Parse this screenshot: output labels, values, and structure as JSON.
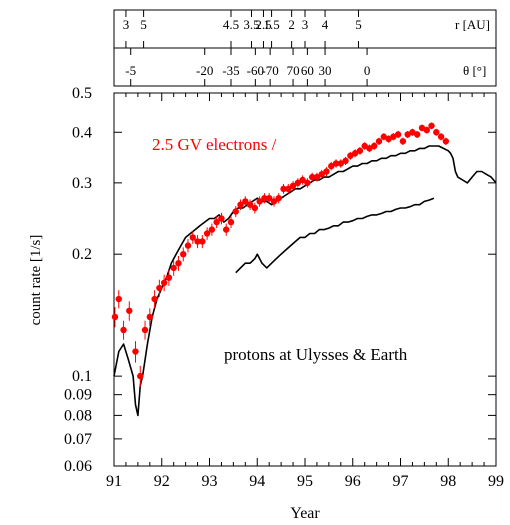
{
  "chart_data": {
    "type": "scatter",
    "title": "",
    "xlabel": "Year",
    "ylabel": "count rate [1/s]",
    "x_scale": "linear",
    "y_scale": "log",
    "xlim": [
      91,
      99
    ],
    "ylim": [
      0.06,
      0.5
    ],
    "x_ticks": [
      91,
      92,
      93,
      94,
      95,
      96,
      97,
      98,
      99
    ],
    "x_tick_labels": [
      "91",
      "92",
      "93",
      "94",
      "95",
      "96",
      "97",
      "98",
      "99"
    ],
    "y_ticks": [
      0.06,
      0.07,
      0.08,
      0.09,
      0.1,
      0.2,
      0.3,
      0.4,
      0.5
    ],
    "y_tick_labels": [
      "0.06",
      "0.07",
      "0.08",
      "0.09",
      "0.1",
      "0.2",
      "0.3",
      "0.4",
      "0.5"
    ],
    "grid": false,
    "legend": "none",
    "annotations": [
      {
        "text": "2.5 GV electrons /",
        "color": "#ff0000"
      },
      {
        "text": "protons at Ulysses & Earth",
        "color": "#000000"
      }
    ],
    "top_axes": [
      {
        "label": "r [AU]",
        "ticks": [
          {
            "year": 91.25,
            "label": "3"
          },
          {
            "year": 91.62,
            "label": "5"
          },
          {
            "year": 93.45,
            "label": "4.5"
          },
          {
            "year": 93.88,
            "label": "3.5"
          },
          {
            "year": 94.13,
            "label": "2.5"
          },
          {
            "year": 94.3,
            "label": "1.5"
          },
          {
            "year": 94.72,
            "label": "2"
          },
          {
            "year": 95.0,
            "label": "3"
          },
          {
            "year": 95.42,
            "label": "4"
          },
          {
            "year": 96.12,
            "label": "5"
          }
        ]
      },
      {
        "label": "θ [°]",
        "ticks": [
          {
            "year": 91.35,
            "label": "-5"
          },
          {
            "year": 92.9,
            "label": "-20"
          },
          {
            "year": 93.45,
            "label": "-35"
          },
          {
            "year": 93.96,
            "label": "-60"
          },
          {
            "year": 94.27,
            "label": "-70"
          },
          {
            "year": 94.75,
            "label": "70"
          },
          {
            "year": 95.05,
            "label": "60"
          },
          {
            "year": 95.42,
            "label": "30"
          },
          {
            "year": 96.3,
            "label": "0"
          }
        ]
      }
    ],
    "series": [
      {
        "name": "",
        "kind": "scatter",
        "color": "#ff0000",
        "x": [
          91.02,
          91.1,
          91.2,
          91.32,
          91.45,
          91.55,
          91.65,
          91.75,
          91.85,
          91.95,
          92.05,
          92.15,
          92.25,
          92.35,
          92.45,
          92.55,
          92.65,
          92.75,
          92.85,
          92.95,
          93.05,
          93.15,
          93.25,
          93.35,
          93.45,
          93.55,
          93.65,
          93.75,
          93.85,
          93.95,
          94.05,
          94.15,
          94.25,
          94.35,
          94.45,
          94.55,
          94.65,
          94.75,
          94.85,
          94.95,
          95.05,
          95.15,
          95.25,
          95.35,
          95.45,
          95.55,
          95.65,
          95.75,
          95.85,
          95.95,
          96.05,
          96.15,
          96.25,
          96.35,
          96.45,
          96.55,
          96.65,
          96.75,
          96.85,
          96.95,
          97.05,
          97.15,
          97.25,
          97.35,
          97.45,
          97.55,
          97.65,
          97.75,
          97.85,
          97.95
        ],
        "y": [
          0.14,
          0.155,
          0.13,
          0.145,
          0.115,
          0.1,
          0.13,
          0.14,
          0.155,
          0.165,
          0.17,
          0.175,
          0.185,
          0.19,
          0.2,
          0.21,
          0.22,
          0.215,
          0.215,
          0.225,
          0.23,
          0.24,
          0.245,
          0.23,
          0.24,
          0.255,
          0.265,
          0.27,
          0.265,
          0.26,
          0.27,
          0.275,
          0.275,
          0.27,
          0.275,
          0.29,
          0.29,
          0.295,
          0.3,
          0.305,
          0.3,
          0.31,
          0.31,
          0.315,
          0.32,
          0.33,
          0.335,
          0.335,
          0.34,
          0.35,
          0.355,
          0.36,
          0.37,
          0.365,
          0.37,
          0.38,
          0.39,
          0.385,
          0.39,
          0.395,
          0.38,
          0.395,
          0.4,
          0.395,
          0.41,
          0.405,
          0.415,
          0.4,
          0.39,
          0.38
        ],
        "errors": [
          0.008,
          0.008,
          0.007,
          0.008,
          0.007,
          0.006,
          0.007,
          0.007,
          0.008,
          0.008,
          0.008,
          0.008,
          0.008,
          0.008,
          0.008,
          0.008,
          0.008,
          0.008,
          0.008,
          0.008,
          0.008,
          0.008,
          0.008,
          0.008,
          0.008,
          0.008,
          0.008,
          0.008,
          0.008,
          0.008,
          0.008,
          0.008,
          0.008,
          0.008,
          0.008,
          0.008,
          0.008,
          0.008,
          0.008,
          0.008,
          0.008,
          0.008,
          0.008,
          0.008,
          0.008,
          0.008,
          0.008,
          0.008,
          0.008,
          0.008,
          0.008,
          0.008,
          0.008,
          0.008,
          0.008,
          0.008,
          0.008,
          0.008,
          0.008,
          0.008,
          0.008,
          0.008,
          0.008,
          0.008,
          0.008,
          0.008,
          0.008,
          0.008,
          0.008,
          0.008
        ]
      },
      {
        "name": "",
        "kind": "line",
        "color": "#000000",
        "x": [
          91.0,
          91.1,
          91.2,
          91.3,
          91.4,
          91.45,
          91.5,
          91.55,
          91.6,
          91.7,
          91.8,
          91.9,
          92.0,
          92.1,
          92.2,
          92.3,
          92.4,
          92.5,
          92.6,
          92.7,
          92.8,
          92.9,
          93.0,
          93.1,
          93.2,
          93.3,
          93.4,
          93.5,
          93.6,
          93.7,
          93.8,
          93.9,
          94.0,
          94.1,
          94.2,
          94.3,
          94.4,
          94.5,
          94.6,
          94.7,
          94.8,
          94.9,
          95.0,
          95.1,
          95.2,
          95.3,
          95.4,
          95.5,
          95.6,
          95.7,
          95.8,
          95.9,
          96.0,
          96.1,
          96.2,
          96.3,
          96.4,
          96.5,
          96.6,
          96.7,
          96.8,
          96.9,
          97.0,
          97.1,
          97.2,
          97.3,
          97.4,
          97.5,
          97.6,
          97.7,
          97.8,
          97.9,
          98.0,
          98.05,
          98.1,
          98.15,
          98.2,
          98.3,
          98.4,
          98.5,
          98.6,
          98.7,
          98.8,
          98.9,
          99.0
        ],
        "y": [
          0.1,
          0.115,
          0.12,
          0.11,
          0.1,
          0.085,
          0.08,
          0.095,
          0.1,
          0.12,
          0.14,
          0.155,
          0.165,
          0.175,
          0.19,
          0.2,
          0.21,
          0.22,
          0.225,
          0.23,
          0.235,
          0.24,
          0.245,
          0.245,
          0.25,
          0.24,
          0.245,
          0.255,
          0.26,
          0.26,
          0.265,
          0.27,
          0.275,
          0.27,
          0.27,
          0.265,
          0.27,
          0.275,
          0.28,
          0.285,
          0.29,
          0.29,
          0.295,
          0.3,
          0.305,
          0.305,
          0.31,
          0.31,
          0.315,
          0.32,
          0.32,
          0.325,
          0.33,
          0.33,
          0.335,
          0.335,
          0.34,
          0.34,
          0.345,
          0.345,
          0.35,
          0.35,
          0.355,
          0.355,
          0.36,
          0.36,
          0.365,
          0.365,
          0.37,
          0.37,
          0.37,
          0.365,
          0.36,
          0.355,
          0.345,
          0.32,
          0.31,
          0.305,
          0.3,
          0.31,
          0.32,
          0.32,
          0.315,
          0.31,
          0.3
        ]
      },
      {
        "name": "",
        "kind": "line",
        "color": "#000000",
        "x": [
          93.55,
          93.65,
          93.75,
          93.85,
          93.95,
          94.0,
          94.05,
          94.1,
          94.2,
          94.3,
          94.4,
          94.5,
          94.6,
          94.7,
          94.8,
          94.9,
          95.0,
          95.1,
          95.2,
          95.3,
          95.4,
          95.5,
          95.6,
          95.7,
          95.8,
          95.9,
          96.0,
          96.1,
          96.2,
          96.3,
          96.4,
          96.5,
          96.6,
          96.7,
          96.8,
          96.9,
          97.0,
          97.1,
          97.2,
          97.3,
          97.4,
          97.5,
          97.6,
          97.7
        ],
        "y": [
          0.18,
          0.185,
          0.19,
          0.19,
          0.195,
          0.2,
          0.195,
          0.19,
          0.185,
          0.19,
          0.195,
          0.2,
          0.205,
          0.21,
          0.215,
          0.22,
          0.22,
          0.225,
          0.225,
          0.23,
          0.23,
          0.232,
          0.235,
          0.235,
          0.24,
          0.24,
          0.242,
          0.245,
          0.245,
          0.248,
          0.25,
          0.25,
          0.252,
          0.255,
          0.255,
          0.258,
          0.26,
          0.26,
          0.262,
          0.265,
          0.265,
          0.27,
          0.272,
          0.275
        ]
      }
    ]
  }
}
